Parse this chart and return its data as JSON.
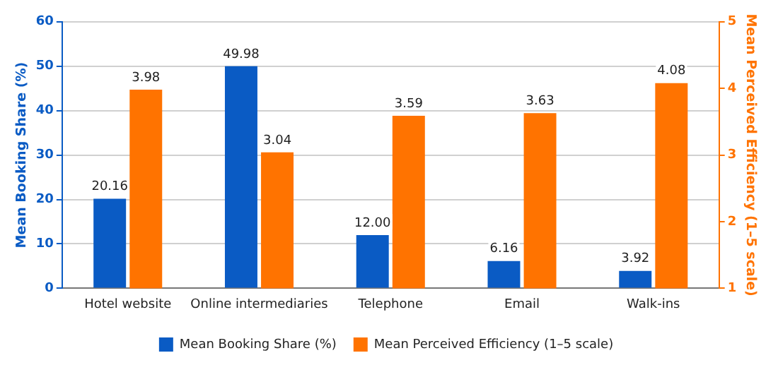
{
  "chart_data": {
    "type": "bar",
    "categories": [
      "Hotel website",
      "Online intermediaries",
      "Telephone",
      "Email",
      "Walk-ins"
    ],
    "series": [
      {
        "name": "Mean Booking Share (%)",
        "color": "#0a5bc4",
        "values": [
          20.16,
          49.98,
          12.0,
          6.16,
          3.92
        ],
        "value_labels": [
          "20.16",
          "49.98",
          "12.00",
          "6.16",
          "3.92"
        ]
      },
      {
        "name": "Mean Perceived Efficiency (1–5 scale)",
        "color": "#ff7300",
        "axis": "y2",
        "values": [
          3.98,
          3.04,
          3.59,
          3.63,
          4.08
        ],
        "value_labels": [
          "3.98",
          "3.04",
          "3.59",
          "3.63",
          "4.08"
        ]
      }
    ],
    "ylabel": "Mean Booking Share (%)",
    "y2label": "Mean Perceived Efficiency (1–5 scale)",
    "ylim": [
      0,
      60
    ],
    "yticks": [
      0,
      10,
      20,
      30,
      40,
      50,
      60
    ],
    "y2lim": [
      1,
      5
    ],
    "y2ticks": [
      1,
      2,
      3,
      4,
      5
    ],
    "grid": "y",
    "legend": "bottom"
  }
}
